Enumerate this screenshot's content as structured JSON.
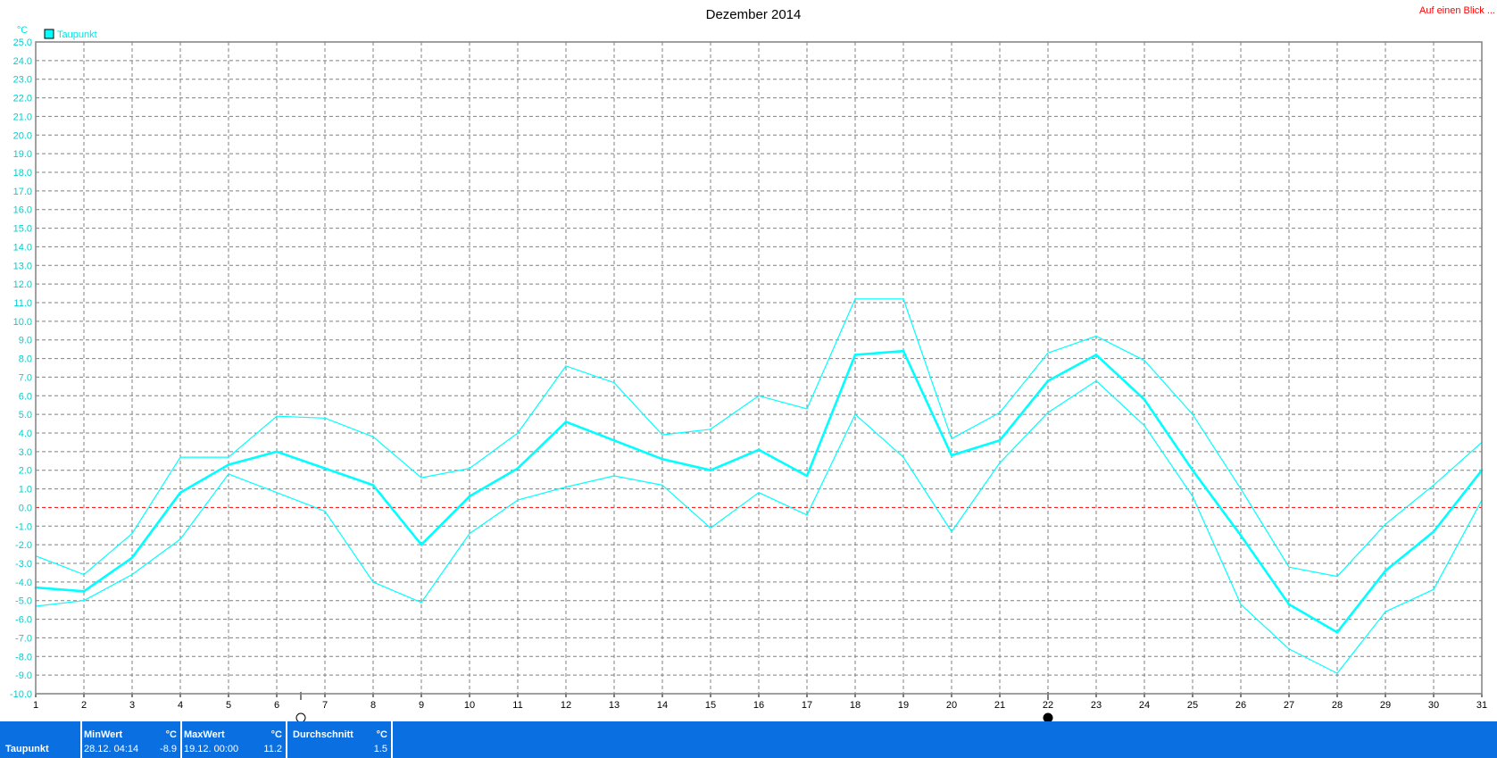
{
  "header": {
    "title": "Dezember 2014",
    "link": "Auf einen Blick ..."
  },
  "legend": {
    "label": "Taupunkt",
    "color": "#00ffff"
  },
  "colors": {
    "series": "#00ffff",
    "zero_line": "#ff0000",
    "grid": "#808080",
    "footer": "#0a6fe0"
  },
  "chart_data": {
    "type": "line",
    "title": "Dezember 2014",
    "ylabel": "°C",
    "xlabel": "",
    "ylim": [
      -10,
      25
    ],
    "ytick_step": 1,
    "x": [
      1,
      2,
      3,
      4,
      5,
      6,
      7,
      8,
      9,
      10,
      11,
      12,
      13,
      14,
      15,
      16,
      17,
      18,
      19,
      20,
      21,
      22,
      23,
      24,
      25,
      26,
      27,
      28,
      29,
      30,
      31
    ],
    "grid": true,
    "zero_line": true,
    "series": [
      {
        "role": "avg",
        "values": [
          -4.3,
          -4.5,
          -2.7,
          0.8,
          2.3,
          3.0,
          2.1,
          1.2,
          -2.0,
          0.6,
          2.1,
          4.6,
          3.6,
          2.6,
          2.0,
          3.1,
          1.7,
          8.2,
          8.4,
          2.8,
          3.6,
          6.8,
          8.2,
          5.8,
          2.0,
          -1.5,
          -5.2,
          -6.7,
          -3.4,
          -1.3,
          2.0
        ]
      },
      {
        "role": "max",
        "values": [
          -2.6,
          -3.6,
          -1.4,
          2.7,
          2.7,
          4.9,
          4.8,
          3.8,
          1.6,
          2.1,
          4.0,
          7.6,
          6.7,
          3.9,
          4.2,
          6.0,
          5.3,
          11.2,
          11.2,
          3.7,
          5.1,
          8.3,
          9.2,
          7.9,
          5.0,
          1.0,
          -3.2,
          -3.7,
          -0.9,
          1.2,
          3.5
        ]
      },
      {
        "role": "min",
        "values": [
          -5.3,
          -5.0,
          -3.6,
          -1.7,
          1.8,
          0.8,
          -0.2,
          -4.0,
          -5.1,
          -1.4,
          0.4,
          1.1,
          1.7,
          1.2,
          -1.1,
          0.8,
          -0.4,
          5.0,
          2.7,
          -1.3,
          2.4,
          5.1,
          6.8,
          4.4,
          0.6,
          -5.2,
          -7.6,
          -8.9,
          -5.6,
          -4.4,
          0.4
        ]
      }
    ],
    "markers": [
      {
        "day": 6.5,
        "icon": "full-moon-icon"
      },
      {
        "day": 22,
        "icon": "new-moon-icon"
      }
    ]
  },
  "footer": {
    "row_label": "Taupunkt",
    "min": {
      "header": "MinWert",
      "unit": "°C",
      "time": "28.12. 04:14",
      "value": "-8.9"
    },
    "max": {
      "header": "MaxWert",
      "unit": "°C",
      "time": "19.12. 00:00",
      "value": "11.2"
    },
    "avg": {
      "header": "Durchschnitt",
      "unit": "°C",
      "value": "1.5"
    }
  }
}
